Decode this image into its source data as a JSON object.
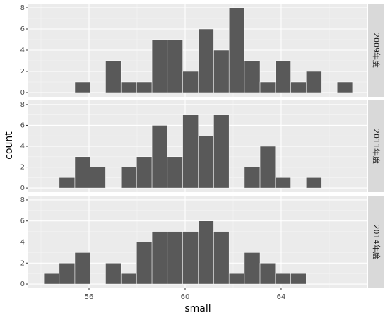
{
  "chart_data": {
    "type": "histogram",
    "xlabel": "small",
    "ylabel": "count",
    "bins": [
      54.12,
      54.76,
      55.41,
      56.05,
      56.69,
      57.33,
      57.98,
      58.62,
      59.26,
      59.9,
      60.55,
      61.19,
      61.83,
      62.47,
      63.12,
      63.76,
      64.4,
      65.04,
      65.69,
      66.33,
      66.97
    ],
    "facets": [
      {
        "label": "2009年度",
        "values": [
          0,
          0,
          1,
          0,
          3,
          1,
          1,
          5,
          5,
          2,
          6,
          4,
          8,
          3,
          1,
          3,
          1,
          2,
          0,
          1
        ]
      },
      {
        "label": "2011年度",
        "values": [
          0,
          1,
          3,
          2,
          0,
          2,
          3,
          6,
          3,
          7,
          5,
          7,
          0,
          2,
          4,
          1,
          0,
          1,
          0,
          0
        ]
      },
      {
        "label": "2014年度",
        "values": [
          1,
          2,
          3,
          0,
          2,
          1,
          4,
          5,
          5,
          5,
          6,
          5,
          1,
          3,
          2,
          1,
          1,
          0,
          0,
          0
        ]
      }
    ],
    "color": "#595959",
    "edge_color": "#ffffff",
    "xlim": [
      53.47,
      67.59
    ],
    "xticks": [
      56,
      60,
      64
    ],
    "xminor": [
      54,
      58,
      62,
      66
    ],
    "ylim": [
      -0.4,
      8.4
    ],
    "yticks": [
      0,
      2,
      4,
      6,
      8
    ],
    "yminor": [
      1,
      3,
      5,
      7
    ],
    "grid": true
  }
}
